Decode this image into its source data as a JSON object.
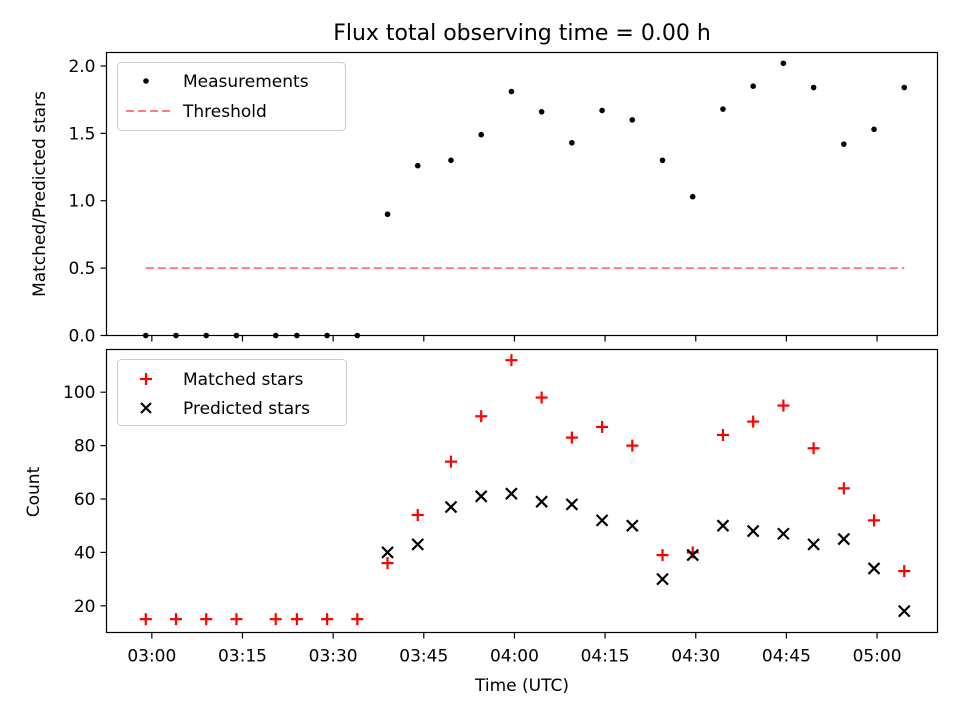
{
  "chart_data": {
    "title": "Flux total observing time = 0.00 h",
    "xlabel": "Time (UTC)",
    "x_tick_labels": [
      "03:00",
      "03:15",
      "03:30",
      "03:45",
      "04:00",
      "04:15",
      "04:30",
      "04:45",
      "05:00"
    ],
    "x_tick_minutes": [
      0,
      15,
      30,
      45,
      60,
      75,
      90,
      105,
      120
    ],
    "xlim_minutes": [
      -7.5,
      130
    ],
    "times_minutes": [
      -1,
      4,
      9,
      14,
      20.5,
      24,
      29,
      34,
      39,
      44,
      49.5,
      54.5,
      59.5,
      64.5,
      69.5,
      74.5,
      79.5,
      84.5,
      89.5,
      94.5,
      99.5,
      104.5,
      109.5,
      114.5,
      119.5,
      124.5
    ],
    "panels": [
      {
        "type": "scatter",
        "ylabel": "Matched/Predicted stars",
        "ylim": [
          0,
          2.1
        ],
        "y_ticks": [
          0.0,
          0.5,
          1.0,
          1.5,
          2.0
        ],
        "y_tick_labels": [
          "0.0",
          "0.5",
          "1.0",
          "1.5",
          "2.0"
        ],
        "legend_position": "upper-left",
        "series": [
          {
            "name": "Measurements",
            "marker": "dot",
            "color": "#000000",
            "y": [
              0,
              0,
              0,
              0,
              0,
              0,
              0,
              0,
              0.9,
              1.26,
              1.3,
              1.49,
              1.81,
              1.66,
              1.43,
              1.67,
              1.6,
              1.3,
              1.03,
              1.68,
              1.85,
              2.02,
              1.84,
              1.42,
              1.53,
              1.84
            ]
          }
        ],
        "threshold": {
          "name": "Threshold",
          "value": 0.5,
          "x_range_minutes": [
            -1,
            124.5
          ],
          "color": "#ff7f7f",
          "style": "dashed"
        }
      },
      {
        "type": "scatter",
        "ylabel": "Count",
        "ylim": [
          10,
          116
        ],
        "y_ticks": [
          20,
          40,
          60,
          80,
          100
        ],
        "y_tick_labels": [
          "20",
          "40",
          "60",
          "80",
          "100"
        ],
        "legend_position": "upper-left",
        "series": [
          {
            "name": "Matched stars",
            "marker": "plus",
            "color": "#ff0000",
            "y": [
              15,
              15,
              15,
              15,
              15,
              15,
              15,
              15,
              36,
              54,
              74,
              91,
              112,
              98,
              83,
              87,
              80,
              39,
              40,
              84,
              89,
              95,
              79,
              64,
              52,
              33
            ]
          },
          {
            "name": "Predicted stars",
            "marker": "x",
            "color": "#000000",
            "y": [
              null,
              null,
              null,
              null,
              null,
              null,
              null,
              null,
              40,
              43,
              57,
              61,
              62,
              59,
              58,
              52,
              50,
              30,
              39,
              50,
              48,
              47,
              43,
              45,
              34,
              18
            ]
          }
        ]
      }
    ]
  }
}
